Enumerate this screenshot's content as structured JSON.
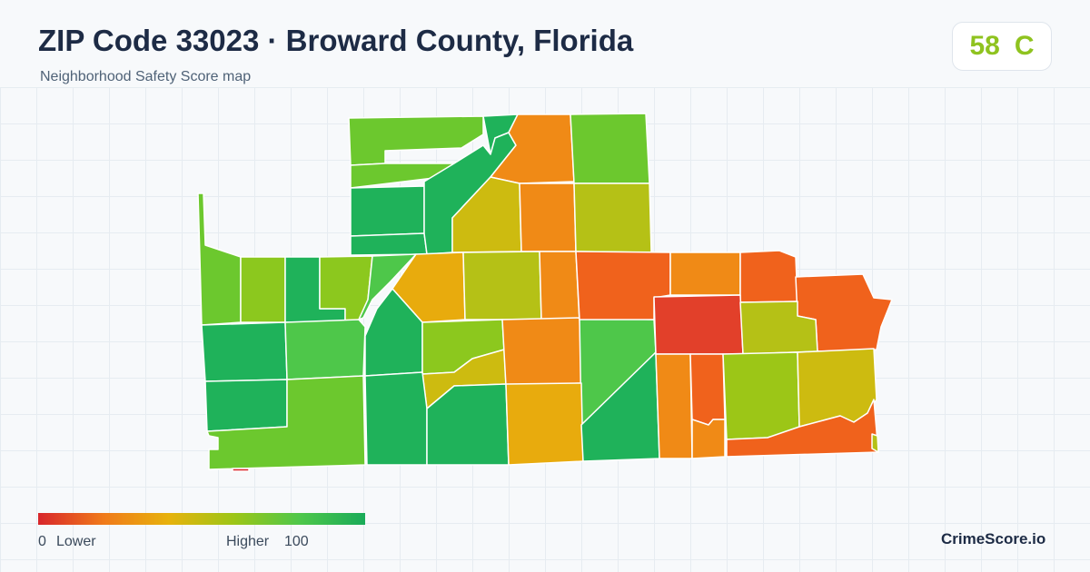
{
  "header": {
    "title": "ZIP Code 33023 · Broward County, Florida",
    "subtitle": "Neighborhood Safety Score map"
  },
  "score": {
    "value": "58",
    "grade": "C",
    "color": "#8fc31f"
  },
  "legend": {
    "min_value": "0",
    "min_label": "Lower",
    "max_label": "Higher",
    "max_value": "100",
    "colors": [
      "#d8262b",
      "#f07a1a",
      "#e7b20c",
      "#9cc617",
      "#4ec74a",
      "#1aab59"
    ]
  },
  "brand": "CrimeScore.io"
}
